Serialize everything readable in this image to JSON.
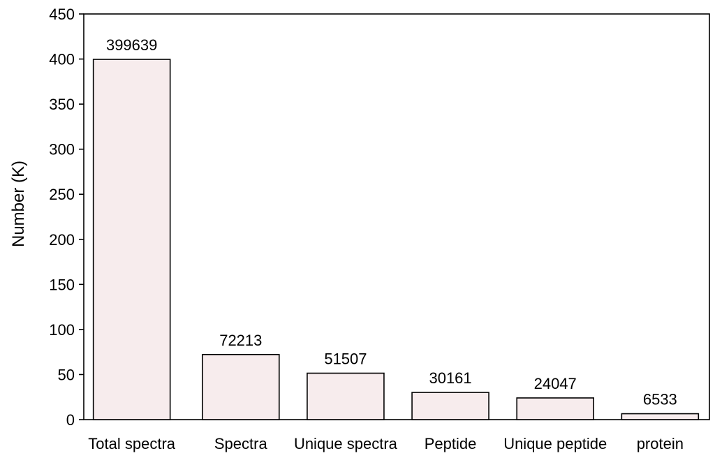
{
  "chart_data": {
    "type": "bar",
    "title": "",
    "xlabel": "",
    "ylabel": "Number (K)",
    "ylim": [
      0,
      450
    ],
    "yticks": [
      0,
      50,
      100,
      150,
      200,
      250,
      300,
      350,
      400,
      450
    ],
    "grid": false,
    "categories": [
      "Total spectra",
      "Spectra",
      "Unique spectra",
      "Peptide",
      "Unique peptide",
      "protein"
    ],
    "values": [
      399.639,
      72.213,
      51.507,
      30.161,
      24.047,
      6.533
    ],
    "data_labels": [
      "399639",
      "72213",
      "51507",
      "30161",
      "24047",
      "6533"
    ],
    "bar_color": "#f7eced",
    "edge_color": "#000000"
  }
}
